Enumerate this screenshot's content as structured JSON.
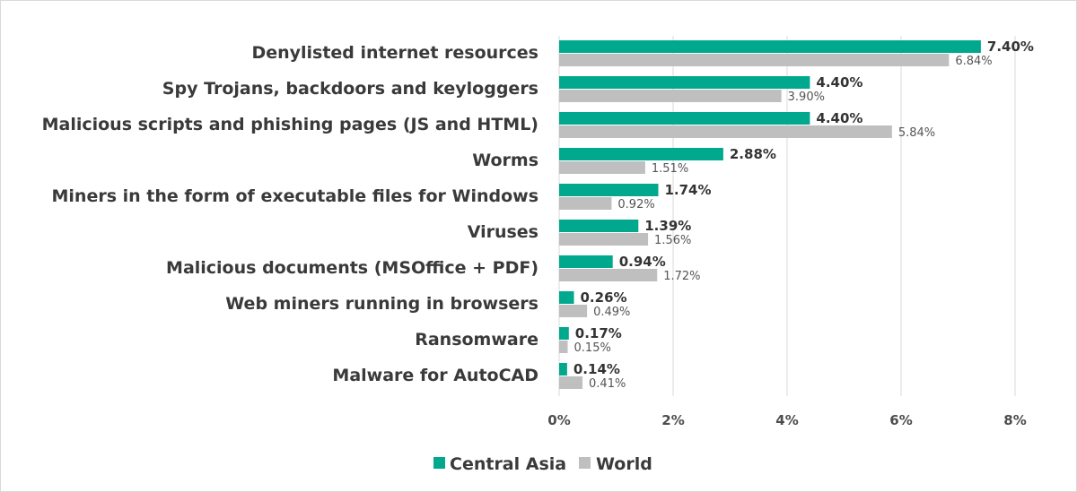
{
  "chart_data": {
    "type": "bar",
    "orientation": "horizontal",
    "categories": [
      "Denylisted internet resources",
      "Spy Trojans, backdoors and keyloggers",
      "Malicious scripts and phishing pages (JS and HTML)",
      "Worms",
      "Miners in the form of executable files for Windows",
      "Viruses",
      "Malicious documents (MSOffice + PDF)",
      "Web miners running in browsers",
      "Ransomware",
      "Malware for AutoCAD"
    ],
    "series": [
      {
        "name": "Central Asia",
        "color": "#00a88e",
        "values": [
          7.4,
          4.4,
          4.4,
          2.88,
          1.74,
          1.39,
          0.94,
          0.26,
          0.17,
          0.14
        ],
        "labels": [
          "7.40%",
          "4.40%",
          "4.40%",
          "2.88%",
          "1.74%",
          "1.39%",
          "0.94%",
          "0.26%",
          "0.17%",
          "0.14%"
        ]
      },
      {
        "name": "World",
        "color": "#bfbfbf",
        "values": [
          6.84,
          3.9,
          5.84,
          1.51,
          0.92,
          1.56,
          1.72,
          0.49,
          0.15,
          0.41
        ],
        "labels": [
          "6.84%",
          "3.90%",
          "5.84%",
          "1.51%",
          "0.92%",
          "1.56%",
          "1.72%",
          "0.49%",
          "0.15%",
          "0.41%"
        ]
      }
    ],
    "xlim": [
      0,
      8
    ],
    "xticks": [
      0,
      2,
      4,
      6,
      8
    ],
    "xtick_labels": [
      "0%",
      "2%",
      "4%",
      "6%",
      "8%"
    ],
    "grid": "vertical",
    "legend": "bottom"
  }
}
